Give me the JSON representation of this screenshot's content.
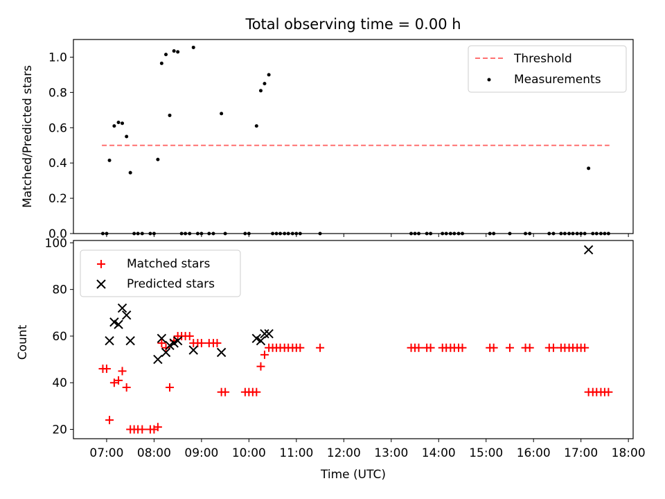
{
  "colors": {
    "threshold": "#ff7070",
    "measurement": "#000000",
    "matched": "#ff0000",
    "predicted": "#000000"
  },
  "chart_data": [
    {
      "type": "scatter",
      "title": "Total observing time = 0.00 h",
      "xlabel": "",
      "ylabel": "Matched/Predicted stars",
      "ylim": [
        0,
        1.1
      ],
      "y_ticks": [
        "0.0",
        "0.2",
        "0.4",
        "0.6",
        "0.8",
        "1.0"
      ],
      "y_tick_values": [
        0,
        0.2,
        0.4,
        0.6,
        0.8,
        1.0
      ],
      "x_unit": "hours UTC",
      "xlim": [
        6.3,
        18.1
      ],
      "legend_position": "top-right",
      "legend": [
        "Threshold",
        "Measurements"
      ],
      "threshold": {
        "name": "Threshold",
        "y": 0.5,
        "x": [
          6.9,
          17.6
        ]
      },
      "series": [
        {
          "name": "Measurements",
          "points": [
            [
              6.92,
              0
            ],
            [
              7.0,
              0
            ],
            [
              7.06,
              0.415
            ],
            [
              7.16,
              0.61
            ],
            [
              7.25,
              0.63
            ],
            [
              7.33,
              0.625
            ],
            [
              7.42,
              0.55
            ],
            [
              7.5,
              0.345
            ],
            [
              7.58,
              0
            ],
            [
              7.66,
              0
            ],
            [
              7.75,
              0
            ],
            [
              7.92,
              0
            ],
            [
              8.0,
              0
            ],
            [
              8.08,
              0.42
            ],
            [
              8.16,
              0.965
            ],
            [
              8.25,
              1.015
            ],
            [
              8.33,
              0.67
            ],
            [
              8.42,
              1.035
            ],
            [
              8.5,
              1.03
            ],
            [
              8.58,
              0
            ],
            [
              8.66,
              0
            ],
            [
              8.75,
              0
            ],
            [
              8.83,
              1.055
            ],
            [
              8.92,
              0
            ],
            [
              9.0,
              0
            ],
            [
              9.16,
              0
            ],
            [
              9.25,
              0
            ],
            [
              9.42,
              0.68
            ],
            [
              9.5,
              0
            ],
            [
              9.92,
              0
            ],
            [
              10.0,
              0
            ],
            [
              10.16,
              0.61
            ],
            [
              10.25,
              0.81
            ],
            [
              10.33,
              0.85
            ],
            [
              10.42,
              0.9
            ],
            [
              10.5,
              0
            ],
            [
              10.58,
              0
            ],
            [
              10.66,
              0
            ],
            [
              10.75,
              0
            ],
            [
              10.83,
              0
            ],
            [
              10.92,
              0
            ],
            [
              11.0,
              0
            ],
            [
              11.08,
              0
            ],
            [
              11.5,
              0
            ],
            [
              13.42,
              0
            ],
            [
              13.5,
              0
            ],
            [
              13.58,
              0
            ],
            [
              13.75,
              0
            ],
            [
              13.83,
              0
            ],
            [
              14.08,
              0
            ],
            [
              14.16,
              0
            ],
            [
              14.25,
              0
            ],
            [
              14.33,
              0
            ],
            [
              14.42,
              0
            ],
            [
              14.5,
              0
            ],
            [
              15.08,
              0
            ],
            [
              15.16,
              0
            ],
            [
              15.5,
              0
            ],
            [
              15.83,
              0
            ],
            [
              15.92,
              0
            ],
            [
              16.33,
              0
            ],
            [
              16.42,
              0
            ],
            [
              16.58,
              0
            ],
            [
              16.66,
              0
            ],
            [
              16.75,
              0
            ],
            [
              16.83,
              0
            ],
            [
              16.92,
              0
            ],
            [
              17.0,
              0
            ],
            [
              17.08,
              0
            ],
            [
              17.16,
              0.37
            ],
            [
              17.25,
              0
            ],
            [
              17.33,
              0
            ],
            [
              17.42,
              0
            ],
            [
              17.5,
              0
            ],
            [
              17.58,
              0
            ]
          ]
        }
      ]
    },
    {
      "type": "scatter",
      "title": "",
      "xlabel": "Time (UTC)",
      "ylabel": "Count",
      "ylim": [
        16,
        101
      ],
      "y_ticks": [
        "20",
        "40",
        "60",
        "80",
        "100"
      ],
      "y_tick_values": [
        20,
        40,
        60,
        80,
        100
      ],
      "x_unit": "hours UTC",
      "xlim": [
        6.3,
        18.1
      ],
      "x_ticks": [
        "07:00",
        "08:00",
        "09:00",
        "10:00",
        "11:00",
        "12:00",
        "13:00",
        "14:00",
        "15:00",
        "16:00",
        "17:00",
        "18:00"
      ],
      "x_tick_values": [
        7,
        8,
        9,
        10,
        11,
        12,
        13,
        14,
        15,
        16,
        17,
        18
      ],
      "legend_position": "top-left",
      "legend": [
        "Matched stars",
        "Predicted stars"
      ],
      "series": [
        {
          "name": "Matched stars",
          "points": [
            [
              6.92,
              46
            ],
            [
              7.0,
              46
            ],
            [
              7.06,
              24
            ],
            [
              7.16,
              40
            ],
            [
              7.25,
              41
            ],
            [
              7.33,
              45
            ],
            [
              7.42,
              38
            ],
            [
              7.5,
              20
            ],
            [
              7.58,
              20
            ],
            [
              7.66,
              20
            ],
            [
              7.75,
              20
            ],
            [
              7.92,
              20
            ],
            [
              8.0,
              20
            ],
            [
              8.08,
              21
            ],
            [
              8.16,
              57
            ],
            [
              8.25,
              55
            ],
            [
              8.33,
              38
            ],
            [
              8.42,
              58
            ],
            [
              8.5,
              60
            ],
            [
              8.58,
              60
            ],
            [
              8.66,
              60
            ],
            [
              8.75,
              60
            ],
            [
              8.83,
              57
            ],
            [
              8.92,
              57
            ],
            [
              9.0,
              57
            ],
            [
              9.16,
              57
            ],
            [
              9.25,
              57
            ],
            [
              9.33,
              57
            ],
            [
              9.42,
              36
            ],
            [
              9.5,
              36
            ],
            [
              9.92,
              36
            ],
            [
              10.0,
              36
            ],
            [
              10.08,
              36
            ],
            [
              10.16,
              36
            ],
            [
              10.25,
              47
            ],
            [
              10.33,
              52
            ],
            [
              10.42,
              55
            ],
            [
              10.5,
              55
            ],
            [
              10.58,
              55
            ],
            [
              10.66,
              55
            ],
            [
              10.75,
              55
            ],
            [
              10.83,
              55
            ],
            [
              10.92,
              55
            ],
            [
              11.0,
              55
            ],
            [
              11.08,
              55
            ],
            [
              11.5,
              55
            ],
            [
              13.42,
              55
            ],
            [
              13.5,
              55
            ],
            [
              13.58,
              55
            ],
            [
              13.75,
              55
            ],
            [
              13.83,
              55
            ],
            [
              14.08,
              55
            ],
            [
              14.16,
              55
            ],
            [
              14.25,
              55
            ],
            [
              14.33,
              55
            ],
            [
              14.42,
              55
            ],
            [
              14.5,
              55
            ],
            [
              15.08,
              55
            ],
            [
              15.16,
              55
            ],
            [
              15.5,
              55
            ],
            [
              15.83,
              55
            ],
            [
              15.92,
              55
            ],
            [
              16.33,
              55
            ],
            [
              16.42,
              55
            ],
            [
              16.58,
              55
            ],
            [
              16.66,
              55
            ],
            [
              16.75,
              55
            ],
            [
              16.83,
              55
            ],
            [
              16.92,
              55
            ],
            [
              17.0,
              55
            ],
            [
              17.08,
              55
            ],
            [
              17.16,
              36
            ],
            [
              17.25,
              36
            ],
            [
              17.33,
              36
            ],
            [
              17.42,
              36
            ],
            [
              17.5,
              36
            ],
            [
              17.58,
              36
            ]
          ]
        },
        {
          "name": "Predicted stars",
          "points": [
            [
              7.06,
              58
            ],
            [
              7.16,
              66
            ],
            [
              7.25,
              65
            ],
            [
              7.33,
              72
            ],
            [
              7.42,
              69
            ],
            [
              7.5,
              58
            ],
            [
              8.08,
              50
            ],
            [
              8.16,
              59
            ],
            [
              8.25,
              53
            ],
            [
              8.33,
              56
            ],
            [
              8.42,
              57
            ],
            [
              8.5,
              58
            ],
            [
              8.83,
              54
            ],
            [
              9.42,
              53
            ],
            [
              10.16,
              59
            ],
            [
              10.25,
              58
            ],
            [
              10.33,
              61
            ],
            [
              10.42,
              61
            ],
            [
              17.16,
              97
            ]
          ]
        }
      ]
    }
  ]
}
